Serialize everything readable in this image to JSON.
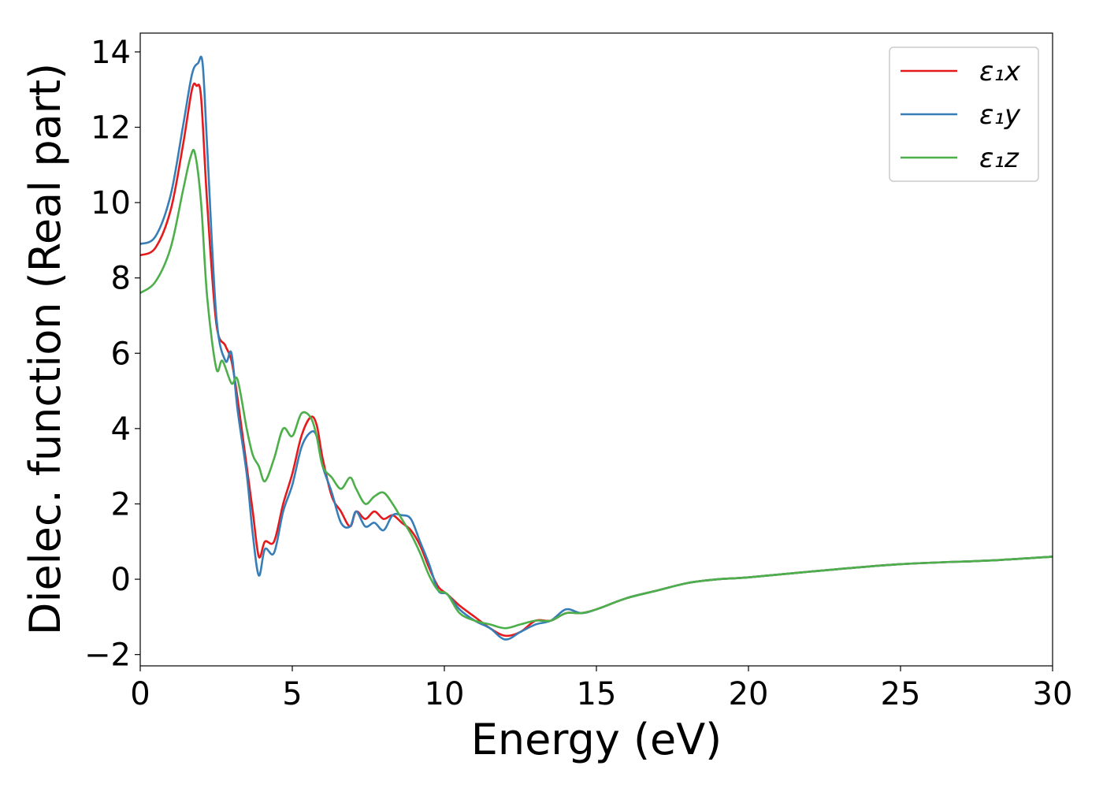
{
  "chart_data": {
    "type": "line",
    "title": "",
    "xlabel": "Energy (eV)",
    "ylabel": "Dielec. function (Real part)",
    "xlim": [
      0,
      30
    ],
    "ylim": [
      -2.3,
      14.5
    ],
    "xticks": [
      0,
      5,
      10,
      15,
      20,
      25,
      30
    ],
    "xtick_labels": [
      "0",
      "5",
      "10",
      "15",
      "20",
      "25",
      "30"
    ],
    "yticks": [
      -2,
      0,
      2,
      4,
      6,
      8,
      10,
      12,
      14
    ],
    "ytick_labels": [
      "−2",
      "0",
      "2",
      "4",
      "6",
      "8",
      "10",
      "12",
      "14"
    ],
    "grid": false,
    "legend_position": "top-right",
    "series": [
      {
        "name": "ε₁x",
        "color": "#e41a1c",
        "x": [
          0,
          0.5,
          1.0,
          1.4,
          1.7,
          1.85,
          2.0,
          2.2,
          2.5,
          2.8,
          3.0,
          3.2,
          3.5,
          3.7,
          3.9,
          4.1,
          4.4,
          4.7,
          5.0,
          5.3,
          5.6,
          5.8,
          6.0,
          6.3,
          6.6,
          6.9,
          7.1,
          7.4,
          7.7,
          8.0,
          8.3,
          8.6,
          8.9,
          9.2,
          9.5,
          9.8,
          10.1,
          10.5,
          11.0,
          11.5,
          12.0,
          12.5,
          13.0,
          13.5,
          14.0,
          14.5,
          15,
          16,
          17,
          18,
          19,
          20,
          22,
          25,
          28,
          30
        ],
        "y": [
          8.6,
          8.8,
          9.8,
          11.5,
          13.0,
          13.1,
          12.8,
          10.0,
          6.8,
          6.2,
          5.8,
          4.8,
          3.0,
          1.8,
          0.6,
          1.0,
          1.0,
          2.0,
          2.8,
          3.8,
          4.3,
          4.1,
          3.2,
          2.2,
          1.8,
          1.4,
          1.8,
          1.6,
          1.8,
          1.6,
          1.7,
          1.5,
          1.3,
          0.9,
          0.3,
          -0.2,
          -0.4,
          -0.7,
          -1.0,
          -1.3,
          -1.5,
          -1.4,
          -1.1,
          -1.1,
          -0.9,
          -0.9,
          -0.8,
          -0.5,
          -0.3,
          -0.1,
          0.0,
          0.05,
          0.2,
          0.4,
          0.5,
          0.6
        ]
      },
      {
        "name": "ε₁y",
        "color": "#377eb8",
        "x": [
          0,
          0.5,
          1.0,
          1.4,
          1.7,
          1.9,
          2.05,
          2.2,
          2.5,
          2.8,
          3.0,
          3.2,
          3.5,
          3.7,
          3.9,
          4.1,
          4.4,
          4.7,
          5.0,
          5.3,
          5.6,
          5.8,
          6.0,
          6.3,
          6.6,
          6.9,
          7.1,
          7.4,
          7.7,
          8.0,
          8.3,
          8.6,
          8.9,
          9.2,
          9.5,
          9.8,
          10.1,
          10.5,
          11.0,
          11.5,
          12.0,
          12.5,
          13.0,
          13.5,
          14.0,
          14.5,
          15,
          16,
          17,
          18,
          19,
          20,
          22,
          25,
          28,
          30
        ],
        "y": [
          8.9,
          9.1,
          10.2,
          12.0,
          13.4,
          13.7,
          13.7,
          11.5,
          7.0,
          5.8,
          6.0,
          4.5,
          2.8,
          1.2,
          0.1,
          0.8,
          0.7,
          1.8,
          2.5,
          3.5,
          3.9,
          3.8,
          3.0,
          2.3,
          1.5,
          1.4,
          1.8,
          1.4,
          1.5,
          1.3,
          1.7,
          1.7,
          1.6,
          1.0,
          0.4,
          -0.3,
          -0.4,
          -0.8,
          -1.1,
          -1.3,
          -1.6,
          -1.4,
          -1.2,
          -1.1,
          -0.8,
          -0.9,
          -0.8,
          -0.5,
          -0.3,
          -0.1,
          0.0,
          0.05,
          0.2,
          0.4,
          0.5,
          0.6
        ]
      },
      {
        "name": "ε₁z",
        "color": "#4daf4a",
        "x": [
          0,
          0.5,
          1.0,
          1.4,
          1.65,
          1.8,
          2.0,
          2.2,
          2.5,
          2.7,
          3.0,
          3.2,
          3.5,
          3.7,
          3.9,
          4.1,
          4.4,
          4.7,
          5.0,
          5.3,
          5.6,
          5.8,
          6.0,
          6.3,
          6.6,
          6.9,
          7.1,
          7.4,
          7.7,
          8.0,
          8.3,
          8.6,
          8.9,
          9.2,
          9.5,
          9.8,
          10.1,
          10.5,
          11.0,
          11.5,
          12.0,
          12.5,
          13.0,
          13.5,
          14.0,
          14.5,
          15,
          16,
          17,
          18,
          19,
          20,
          22,
          25,
          28,
          30
        ],
        "y": [
          7.6,
          7.9,
          8.8,
          10.3,
          11.2,
          11.3,
          10.0,
          7.5,
          5.6,
          5.8,
          5.2,
          5.3,
          4.0,
          3.3,
          3.0,
          2.6,
          3.2,
          4.0,
          3.8,
          4.4,
          4.3,
          3.8,
          3.0,
          2.7,
          2.4,
          2.7,
          2.4,
          2.0,
          2.2,
          2.3,
          2.0,
          1.6,
          1.2,
          0.7,
          0.1,
          -0.3,
          -0.4,
          -0.9,
          -1.1,
          -1.2,
          -1.3,
          -1.2,
          -1.1,
          -1.1,
          -0.9,
          -0.9,
          -0.8,
          -0.5,
          -0.3,
          -0.1,
          0.0,
          0.05,
          0.2,
          0.4,
          0.5,
          0.6
        ]
      }
    ]
  }
}
